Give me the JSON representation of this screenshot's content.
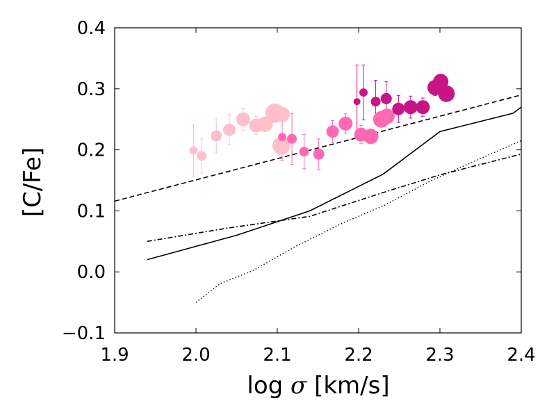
{
  "chart_data": {
    "type": "scatter",
    "xlabel_prefix": "log ",
    "xlabel_symbol": "σ",
    "xlabel_suffix": " [km/s]",
    "ylabel": "[C/Fe]",
    "xlim": [
      1.9,
      2.4
    ],
    "ylim": [
      -0.1,
      0.4
    ],
    "xticks": [
      1.9,
      2.0,
      2.1,
      2.2,
      2.3,
      2.4
    ],
    "xtick_labels": [
      "1.9",
      "2.0",
      "2.1",
      "2.2",
      "2.3",
      "2.4"
    ],
    "yticks": [
      -0.1,
      0.0,
      0.1,
      0.2,
      0.3,
      0.4
    ],
    "ytick_labels": [
      "−0.1",
      "0.0",
      "0.1",
      "0.2",
      "0.3",
      "0.4"
    ],
    "colors": {
      "light_pink": "#ffc0cb",
      "hot_pink": "#ff69b4",
      "violet_red": "#c71585",
      "line": "#000000"
    },
    "points": [
      {
        "x": 1.997,
        "y": 0.199,
        "err": 0.042,
        "size": 6,
        "color": "light_pink"
      },
      {
        "x": 2.007,
        "y": 0.19,
        "err": 0.028,
        "size": 7,
        "color": "light_pink"
      },
      {
        "x": 2.025,
        "y": 0.223,
        "err": 0.028,
        "size": 8,
        "color": "light_pink"
      },
      {
        "x": 2.041,
        "y": 0.233,
        "err": 0.025,
        "size": 9,
        "color": "light_pink"
      },
      {
        "x": 2.058,
        "y": 0.25,
        "err": 0.018,
        "size": 10,
        "color": "light_pink"
      },
      {
        "x": 2.074,
        "y": 0.24,
        "err": 0.015,
        "size": 10,
        "color": "light_pink"
      },
      {
        "x": 2.085,
        "y": 0.242,
        "err": 0.012,
        "size": 11,
        "color": "light_pink"
      },
      {
        "x": 2.097,
        "y": 0.26,
        "err": 0.012,
        "size": 14,
        "color": "light_pink"
      },
      {
        "x": 2.105,
        "y": 0.207,
        "err": 0.014,
        "size": 13,
        "color": "light_pink"
      },
      {
        "x": 2.106,
        "y": 0.258,
        "err": 0.012,
        "size": 11,
        "color": "light_pink"
      },
      {
        "x": 2.106,
        "y": 0.221,
        "err": 0.038,
        "size": 6,
        "color": "hot_pink"
      },
      {
        "x": 2.118,
        "y": 0.218,
        "err": 0.042,
        "size": 7,
        "color": "hot_pink"
      },
      {
        "x": 2.133,
        "y": 0.197,
        "err": 0.028,
        "size": 7,
        "color": "hot_pink"
      },
      {
        "x": 2.151,
        "y": 0.193,
        "err": 0.025,
        "size": 8,
        "color": "hot_pink"
      },
      {
        "x": 2.168,
        "y": 0.23,
        "err": 0.018,
        "size": 9,
        "color": "hot_pink"
      },
      {
        "x": 2.184,
        "y": 0.243,
        "err": 0.016,
        "size": 10,
        "color": "hot_pink"
      },
      {
        "x": 2.203,
        "y": 0.225,
        "err": 0.015,
        "size": 10,
        "color": "hot_pink"
      },
      {
        "x": 2.215,
        "y": 0.222,
        "err": 0.012,
        "size": 11,
        "color": "hot_pink"
      },
      {
        "x": 2.228,
        "y": 0.25,
        "err": 0.012,
        "size": 12,
        "color": "hot_pink"
      },
      {
        "x": 2.235,
        "y": 0.255,
        "err": 0.012,
        "size": 11,
        "color": "hot_pink"
      },
      {
        "x": 2.198,
        "y": 0.279,
        "err": 0.06,
        "size": 5,
        "color": "violet_red"
      },
      {
        "x": 2.206,
        "y": 0.294,
        "err": 0.045,
        "size": 6,
        "color": "violet_red"
      },
      {
        "x": 2.221,
        "y": 0.279,
        "err": 0.035,
        "size": 7,
        "color": "violet_red"
      },
      {
        "x": 2.234,
        "y": 0.284,
        "err": 0.028,
        "size": 8,
        "color": "violet_red"
      },
      {
        "x": 2.249,
        "y": 0.267,
        "err": 0.022,
        "size": 9,
        "color": "violet_red"
      },
      {
        "x": 2.264,
        "y": 0.27,
        "err": 0.018,
        "size": 10,
        "color": "violet_red"
      },
      {
        "x": 2.279,
        "y": 0.27,
        "err": 0.015,
        "size": 10,
        "color": "violet_red"
      },
      {
        "x": 2.294,
        "y": 0.302,
        "err": 0.013,
        "size": 11,
        "color": "violet_red"
      },
      {
        "x": 2.301,
        "y": 0.312,
        "err": 0.012,
        "size": 11,
        "color": "violet_red"
      },
      {
        "x": 2.308,
        "y": 0.292,
        "err": 0.012,
        "size": 12,
        "color": "violet_red"
      }
    ],
    "lines": [
      {
        "name": "solid",
        "style": "solid",
        "x": [
          1.94,
          2.05,
          2.14,
          2.23,
          2.3,
          2.39,
          2.4
        ],
        "y": [
          0.02,
          0.06,
          0.1,
          0.16,
          0.23,
          0.26,
          0.27
        ]
      },
      {
        "name": "dashed",
        "style": "dashed",
        "x": [
          1.9,
          2.4
        ],
        "y": [
          0.116,
          0.29
        ]
      },
      {
        "name": "dashdot",
        "style": "dashdot",
        "x": [
          1.94,
          2.04,
          2.14,
          2.23,
          2.3,
          2.4
        ],
        "y": [
          0.05,
          0.072,
          0.091,
          0.13,
          0.159,
          0.193
        ]
      },
      {
        "name": "dotted",
        "style": "dotted",
        "x": [
          2.0,
          2.03,
          2.07,
          2.12,
          2.18,
          2.23,
          2.29,
          2.34,
          2.4
        ],
        "y": [
          -0.05,
          -0.019,
          0.002,
          0.04,
          0.08,
          0.108,
          0.15,
          0.18,
          0.215
        ]
      }
    ]
  }
}
